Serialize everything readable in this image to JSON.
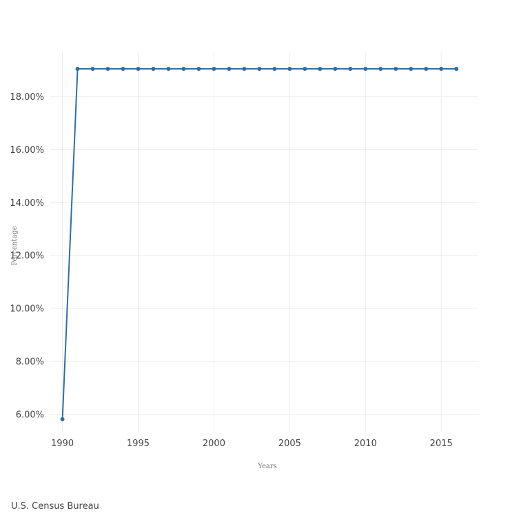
{
  "chart_data": {
    "type": "line",
    "xlabel": "Years",
    "ylabel": "Percentage",
    "x_ticks": [
      1990,
      1995,
      2000,
      2005,
      2010,
      2015
    ],
    "y_ticks": [
      6,
      8,
      10,
      12,
      14,
      16,
      18
    ],
    "y_tick_suffix": "%",
    "y_tick_decimals": 2,
    "xlim": [
      1989.2,
      1917.4
    ],
    "ylim": [
      5.35,
      19.7
    ],
    "grid": true,
    "colors": {
      "series": "#2c6fa6",
      "grid": "#ebebeb"
    },
    "series": [
      {
        "x": [
          1990,
          1991,
          1992,
          1993,
          1994,
          1995,
          1996,
          1997,
          1998,
          1999,
          2000,
          2001,
          2002,
          2003,
          2004,
          2005,
          2006,
          2007,
          2008,
          2009,
          2010,
          2011,
          2012,
          2013,
          2014,
          2015,
          2016
        ],
        "y": [
          5.82,
          19.05,
          19.05,
          19.05,
          19.05,
          19.05,
          19.05,
          19.05,
          19.05,
          19.05,
          19.05,
          19.05,
          19.05,
          19.05,
          19.05,
          19.05,
          19.05,
          19.05,
          19.05,
          19.05,
          19.05,
          19.05,
          19.05,
          19.05,
          19.05,
          19.05,
          19.05
        ]
      }
    ]
  },
  "source": "U.S. Census Bureau"
}
